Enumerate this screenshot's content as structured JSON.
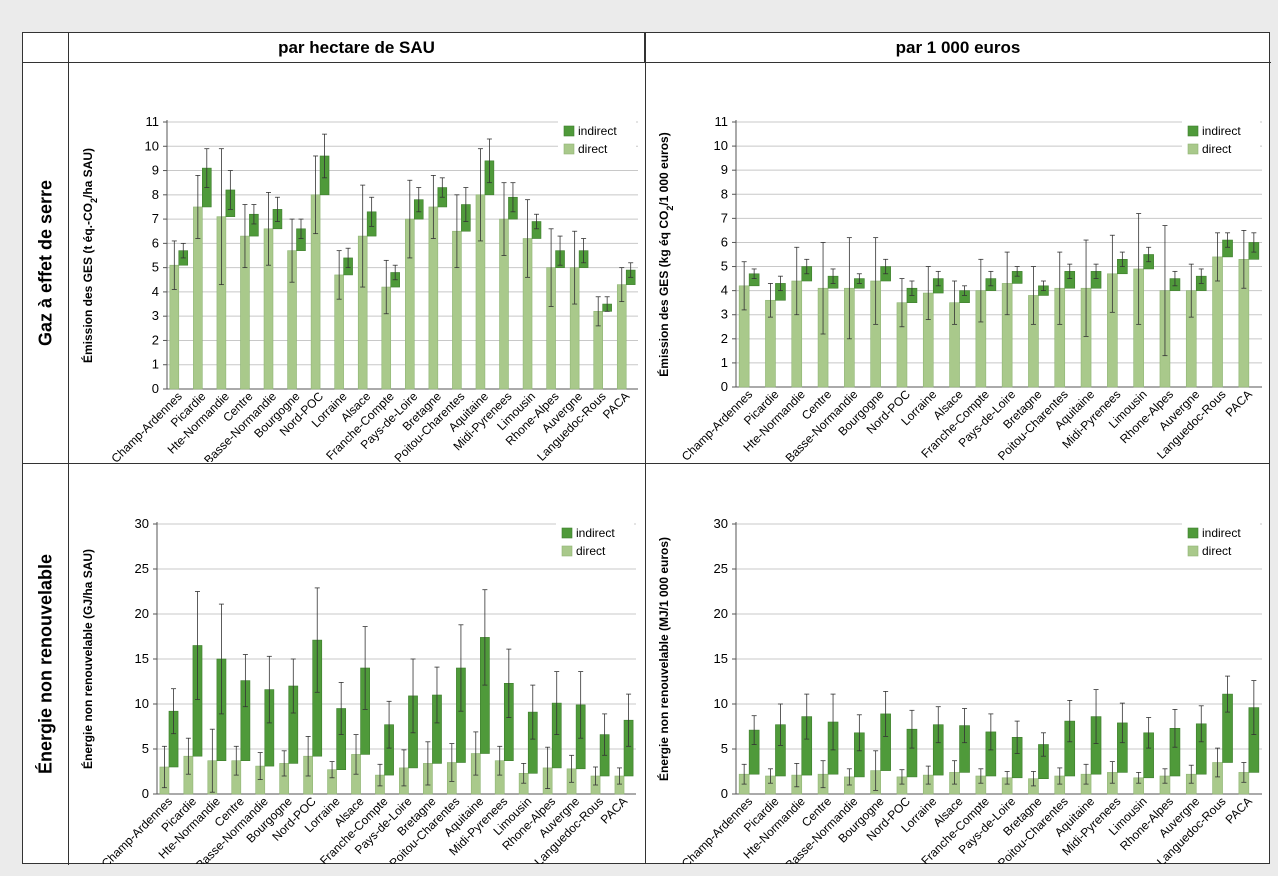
{
  "headers": {
    "col1": "par hectare de SAU",
    "col2": "par 1 000 euros",
    "row1": "Gaz à effet de serre",
    "row2": "Énergie non renouvelable"
  },
  "legend": {
    "indirect": "indirect",
    "direct": "direct"
  },
  "colors": {
    "direct": "#a9c98b",
    "indirect": "#4f9a3a",
    "grid": "#c8c8c8",
    "text": "#000000"
  },
  "chart_data": [
    {
      "type": "bar",
      "id": "ges-ha",
      "title": "",
      "ylabel_main": "Émission des GES (t éq.-CO",
      "ylabel_sub": "2",
      "ylabel_tail": "/ha SAU)",
      "ylim": [
        0,
        11
      ],
      "yticks": [
        0,
        1,
        2,
        3,
        4,
        5,
        6,
        7,
        8,
        9,
        10,
        11
      ],
      "grid": true,
      "legend_position": "top-right",
      "categories": [
        "Champ-Ardennes",
        "Picardie",
        "Hte-Normandie",
        "Centre",
        "Basse-Normandie",
        "Bourgogne",
        "Nord-POC",
        "Lorraine",
        "Alsace",
        "Franche-Compte",
        "Pays-de-Loire",
        "Bretagne",
        "Poitou-Charentes",
        "Aquitaine",
        "Midi-Pyrenees",
        "Limousin",
        "Rhone-Alpes",
        "Auvergne",
        "Languedoc-Rous",
        "PACA"
      ],
      "series": [
        {
          "name": "direct",
          "values": [
            5.1,
            7.5,
            7.1,
            6.3,
            6.6,
            5.7,
            8.0,
            4.7,
            6.3,
            4.2,
            7.0,
            7.5,
            6.5,
            8.0,
            7.0,
            6.2,
            5.0,
            5.0,
            3.2,
            4.3
          ],
          "error": [
            1.0,
            1.3,
            2.8,
            1.3,
            1.5,
            1.3,
            1.6,
            1.0,
            2.1,
            1.1,
            1.6,
            1.3,
            1.5,
            1.9,
            1.5,
            1.6,
            1.6,
            1.5,
            0.6,
            0.7
          ]
        },
        {
          "name": "indirect",
          "values": [
            5.7,
            9.1,
            8.2,
            7.2,
            7.4,
            6.6,
            9.6,
            5.4,
            7.3,
            4.8,
            7.8,
            8.3,
            7.6,
            9.4,
            7.9,
            6.9,
            5.7,
            5.7,
            3.5,
            4.9
          ],
          "error": [
            0.3,
            0.8,
            0.8,
            0.4,
            0.5,
            0.4,
            0.9,
            0.4,
            0.6,
            0.3,
            0.5,
            0.4,
            0.7,
            0.9,
            0.6,
            0.3,
            0.6,
            0.5,
            0.3,
            0.3
          ]
        }
      ]
    },
    {
      "type": "bar",
      "id": "ges-euro",
      "title": "",
      "ylabel_main": "Émission des GES (kg éq CO",
      "ylabel_sub": "2",
      "ylabel_tail": "/1 000 euros)",
      "ylim": [
        0,
        11
      ],
      "yticks": [
        0,
        1,
        2,
        3,
        4,
        5,
        6,
        7,
        8,
        9,
        10,
        11
      ],
      "grid": true,
      "legend_position": "top-right",
      "categories": [
        "Champ-Ardennes",
        "Picardie",
        "Hte-Normandie",
        "Centre",
        "Basse-Normandie",
        "Bourgogne",
        "Nord-POC",
        "Lorraine",
        "Alsace",
        "Franche-Compte",
        "Pays-de-Loire",
        "Bretagne",
        "Poitou-Charentes",
        "Aquitaine",
        "Midi-Pyrenees",
        "Limousin",
        "Rhone-Alpes",
        "Auvergne",
        "Languedoc-Rous",
        "PACA"
      ],
      "series": [
        {
          "name": "direct",
          "values": [
            4.2,
            3.6,
            4.4,
            4.1,
            4.1,
            4.4,
            3.5,
            3.9,
            3.5,
            4.0,
            4.3,
            3.8,
            4.1,
            4.1,
            4.7,
            4.9,
            4.0,
            4.0,
            5.4,
            5.3
          ],
          "error": [
            1.0,
            0.7,
            1.4,
            1.9,
            2.1,
            1.8,
            1.0,
            1.1,
            0.9,
            1.3,
            1.3,
            1.2,
            1.5,
            2.0,
            1.6,
            2.3,
            2.7,
            1.1,
            1.0,
            1.2
          ]
        },
        {
          "name": "indirect",
          "values": [
            4.7,
            4.3,
            5.0,
            4.6,
            4.5,
            5.0,
            4.1,
            4.5,
            4.0,
            4.5,
            4.8,
            4.2,
            4.8,
            4.8,
            5.3,
            5.5,
            4.5,
            4.6,
            6.1,
            6.0
          ],
          "error": [
            0.2,
            0.3,
            0.3,
            0.3,
            0.2,
            0.3,
            0.3,
            0.3,
            0.2,
            0.3,
            0.2,
            0.2,
            0.3,
            0.3,
            0.3,
            0.3,
            0.3,
            0.3,
            0.3,
            0.4
          ]
        }
      ]
    },
    {
      "type": "bar",
      "id": "enr-ha",
      "title": "",
      "ylabel_main": "Énergie non renouvelable (GJ/ha SAU)",
      "ylabel_sub": "",
      "ylabel_tail": "",
      "ylim": [
        0,
        30
      ],
      "yticks": [
        0,
        5,
        10,
        15,
        20,
        25,
        30
      ],
      "grid": true,
      "legend_position": "top-right",
      "categories": [
        "Champ-Ardennes",
        "Picardie",
        "Hte-Normandie",
        "Centre",
        "Basse-Normandie",
        "Bourgogne",
        "Nord-POC",
        "Lorraine",
        "Alsace",
        "Franche-Compte",
        "Pays-de-Loire",
        "Bretagne",
        "Poitou-Charentes",
        "Aquitaine",
        "Midi-Pyrenees",
        "Limousin",
        "Rhone-Alpes",
        "Auvergne",
        "Languedoc-Rous",
        "PACA"
      ],
      "series": [
        {
          "name": "direct",
          "values": [
            3.0,
            4.2,
            3.7,
            3.7,
            3.1,
            3.4,
            4.2,
            2.7,
            4.4,
            2.1,
            2.9,
            3.4,
            3.5,
            4.5,
            3.7,
            2.3,
            2.9,
            2.8,
            2.0,
            2.0
          ],
          "error": [
            2.3,
            2.0,
            3.5,
            1.6,
            1.5,
            1.4,
            2.2,
            0.9,
            2.2,
            1.2,
            2.0,
            2.4,
            2.1,
            2.4,
            1.6,
            1.1,
            2.3,
            1.5,
            1.0,
            0.9
          ]
        },
        {
          "name": "indirect",
          "values": [
            9.2,
            16.5,
            15.0,
            12.6,
            11.6,
            12.0,
            17.1,
            9.5,
            14.0,
            7.7,
            10.9,
            11.0,
            14.0,
            17.4,
            12.3,
            9.1,
            10.1,
            9.9,
            6.6,
            8.2
          ],
          "error": [
            2.5,
            6.0,
            6.1,
            2.9,
            3.7,
            3.0,
            5.8,
            2.9,
            4.6,
            2.6,
            4.1,
            3.1,
            4.8,
            5.3,
            3.8,
            3.0,
            3.5,
            3.7,
            2.3,
            2.9
          ]
        }
      ]
    },
    {
      "type": "bar",
      "id": "enr-euro",
      "title": "",
      "ylabel_main": "Énergie non renouvelable (MJ/1 000 euros)",
      "ylabel_sub": "",
      "ylabel_tail": "",
      "ylim": [
        0,
        30
      ],
      "yticks": [
        0,
        5,
        10,
        15,
        20,
        25,
        30
      ],
      "grid": true,
      "legend_position": "top-right",
      "categories": [
        "Champ-Ardennes",
        "Picardie",
        "Hte-Normandie",
        "Centre",
        "Basse-Normandie",
        "Bourgogne",
        "Nord-POC",
        "Lorraine",
        "Alsace",
        "Franche-Compte",
        "Pays-de-Loire",
        "Bretagne",
        "Poitou-Charentes",
        "Aquitaine",
        "Midi-Pyrenees",
        "Limousin",
        "Rhone-Alpes",
        "Auvergne",
        "Languedoc-Rous",
        "PACA"
      ],
      "series": [
        {
          "name": "direct",
          "values": [
            2.2,
            2.0,
            2.1,
            2.2,
            1.9,
            2.6,
            1.9,
            2.1,
            2.4,
            2.0,
            1.8,
            1.7,
            2.0,
            2.2,
            2.4,
            1.8,
            2.0,
            2.2,
            3.5,
            2.4
          ],
          "error": [
            1.1,
            0.8,
            1.3,
            1.5,
            0.9,
            2.2,
            0.8,
            1.0,
            1.3,
            0.8,
            0.7,
            0.8,
            0.9,
            1.1,
            1.2,
            0.6,
            0.8,
            1.0,
            1.6,
            1.1
          ]
        },
        {
          "name": "indirect",
          "values": [
            7.1,
            7.7,
            8.6,
            8.0,
            6.8,
            8.9,
            7.2,
            7.7,
            7.6,
            6.9,
            6.3,
            5.5,
            8.1,
            8.6,
            7.9,
            6.8,
            7.3,
            7.8,
            11.1,
            9.6
          ],
          "error": [
            1.6,
            2.3,
            2.5,
            3.1,
            2.0,
            2.5,
            2.1,
            2.0,
            1.9,
            2.0,
            1.8,
            1.3,
            2.3,
            3.0,
            2.2,
            1.7,
            2.1,
            2.0,
            2.0,
            3.0
          ]
        }
      ]
    }
  ]
}
